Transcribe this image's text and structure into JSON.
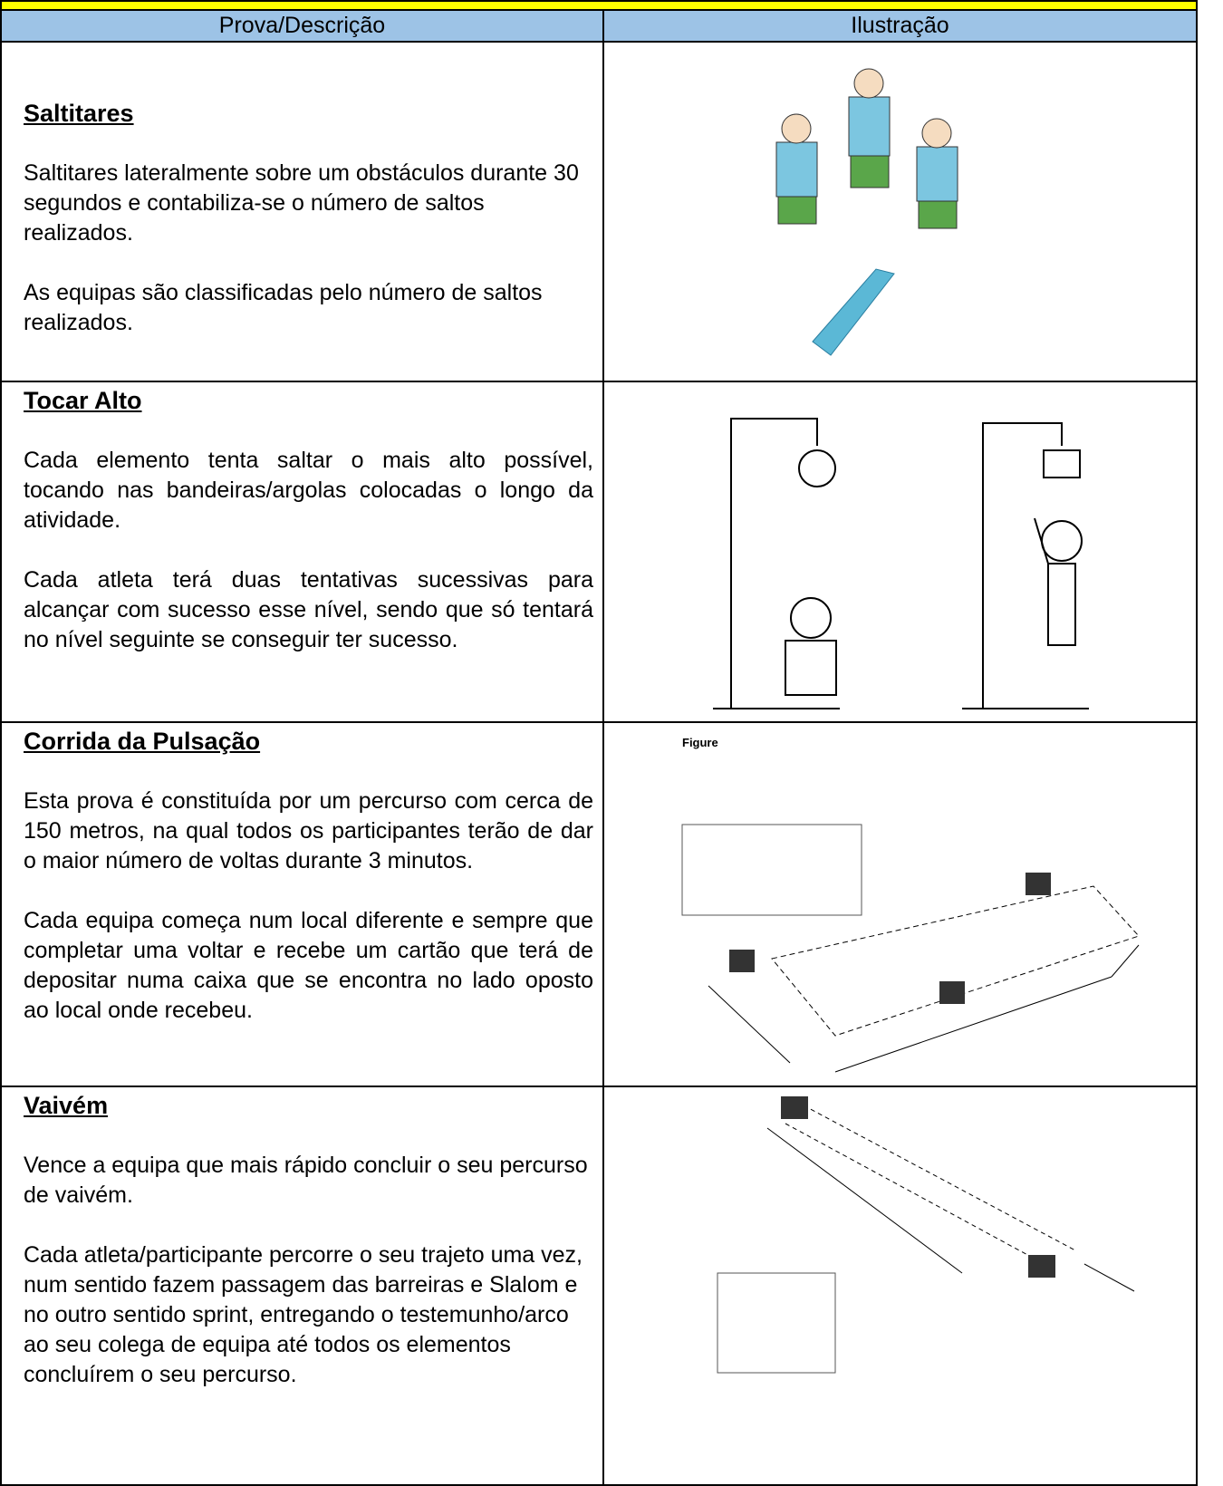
{
  "table": {
    "headers": [
      "Prova/Descrição",
      "Ilustração"
    ],
    "rows": [
      {
        "title": "Saltitares",
        "paragraphs": [
          "Saltitares lateralmente sobre um obstáculos durante 30 segundos e contabiliza-se o número de saltos realizados.",
          "As equipas são classificadas pelo número de saltos realizados."
        ]
      },
      {
        "title": "Tocar Alto",
        "paragraphs": [
          "Cada elemento tenta saltar o mais alto possível, tocando nas bandeiras/argolas colocadas o longo da atividade.",
          "Cada atleta terá duas tentativas sucessivas para alcançar com sucesso esse nível, sendo que só tentará no nível seguinte se conseguir ter sucesso."
        ]
      },
      {
        "title": "Corrida da Pulsação",
        "paragraphs": [
          "Esta prova é constituída por um percurso com cerca de 150 metros, na qual todos os participantes terão de dar o maior número de voltas durante 3 minutos.",
          "Cada equipa começa num local diferente e sempre que completar uma voltar e recebe um cartão que terá de depositar numa caixa que se encontra no lado oposto ao local onde recebeu."
        ],
        "figure_label": "Figure"
      },
      {
        "title": "Vaivém",
        "paragraphs": [
          "Vence a equipa que mais rápido concluir o seu percurso de vaivém.",
          "Cada atleta/participante percorre o seu trajeto uma vez, num sentido fazem passagem das barreiras e Slalom e no outro sentido sprint, entregando o testemunho/arco ao seu colega de equipa até todos os elementos concluírem o seu percurso."
        ]
      }
    ]
  }
}
